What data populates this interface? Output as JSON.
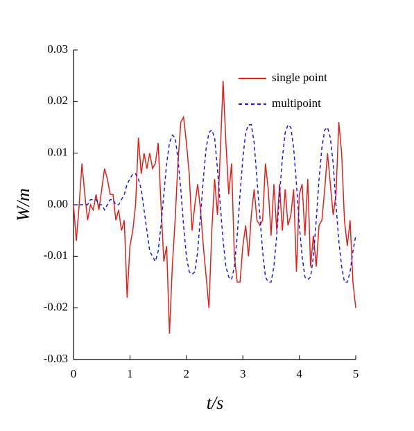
{
  "chart_data": {
    "type": "line",
    "x_label": "t/s",
    "y_label": "W/m",
    "x": [
      0,
      0.05,
      0.1,
      0.15,
      0.2,
      0.25,
      0.3,
      0.35,
      0.4,
      0.45,
      0.5,
      0.55,
      0.6,
      0.65,
      0.7,
      0.75,
      0.8,
      0.85,
      0.9,
      0.95,
      1,
      1.05,
      1.1,
      1.15,
      1.2,
      1.25,
      1.3,
      1.35,
      1.4,
      1.45,
      1.5,
      1.55,
      1.6,
      1.65,
      1.7,
      1.75,
      1.8,
      1.85,
      1.9,
      1.95,
      2,
      2.05,
      2.1,
      2.15,
      2.2,
      2.25,
      2.3,
      2.35,
      2.4,
      2.45,
      2.5,
      2.55,
      2.6,
      2.65,
      2.7,
      2.75,
      2.8,
      2.85,
      2.9,
      2.95,
      3,
      3.05,
      3.1,
      3.15,
      3.2,
      3.25,
      3.3,
      3.35,
      3.4,
      3.45,
      3.5,
      3.55,
      3.6,
      3.65,
      3.7,
      3.75,
      3.8,
      3.85,
      3.9,
      3.95,
      4,
      4.05,
      4.1,
      4.15,
      4.2,
      4.25,
      4.3,
      4.35,
      4.4,
      4.45,
      4.5,
      4.55,
      4.6,
      4.65,
      4.7,
      4.75,
      4.8,
      4.85,
      4.9,
      4.95,
      5
    ],
    "series": [
      {
        "name": "single point",
        "color": "#e0201b",
        "dash": false,
        "values": [
          0,
          -0.007,
          0,
          0.008,
          0.002,
          -0.003,
          0,
          -0.001,
          0.002,
          -0.001,
          0.003,
          0.007,
          0.005,
          0.002,
          0.002,
          -0.003,
          -0.001,
          -0.005,
          -0.003,
          -0.018,
          -0.008,
          -0.005,
          0,
          0.013,
          0.006,
          0.01,
          0.007,
          0.01,
          0.007,
          0.008,
          0.012,
          0,
          -0.011,
          -0.008,
          -0.025,
          -0.012,
          -0.003,
          0.008,
          0.016,
          0.017,
          0.012,
          0.006,
          -0.005,
          0,
          0.004,
          -0.001,
          -0.008,
          -0.014,
          -0.02,
          -0.005,
          0.005,
          -0.002,
          0.01,
          0.024,
          0.012,
          0.002,
          0.008,
          -0.01,
          -0.015,
          -0.015,
          -0.008,
          -0.004,
          -0.01,
          -0.002,
          0.003,
          -0.003,
          -0.004,
          -0.003,
          0.008,
          0.003,
          -0.006,
          0.004,
          -0.005,
          0.004,
          -0.005,
          0.003,
          -0.004,
          -0.002,
          0.003,
          -0.013,
          0.002,
          0.004,
          -0.006,
          0.005,
          -0.012,
          -0.006,
          -0.012,
          -0.004,
          -0.003,
          0.003,
          0.01,
          0.004,
          -0.002,
          0.002,
          0.016,
          0.01,
          -0.003,
          -0.008,
          -0.003,
          -0.015,
          -0.02
        ]
      },
      {
        "name": "multipoint",
        "color": "#1a1adf",
        "dash": true,
        "values": [
          0,
          0,
          0,
          0,
          0,
          0,
          0.001,
          0.001,
          0.001,
          0,
          0,
          -0.001,
          0,
          0.001,
          0.001,
          0,
          0,
          0.001,
          0.002,
          0.004,
          0.005,
          0.006,
          0.006,
          0.005,
          0.003,
          -0.001,
          -0.005,
          -0.009,
          -0.01,
          -0.011,
          -0.009,
          -0.004,
          0.002,
          0.008,
          0.012,
          0.0135,
          0.013,
          0.009,
          0.003,
          -0.004,
          -0.01,
          -0.013,
          -0.0135,
          -0.013,
          -0.009,
          -0.002,
          0.005,
          0.011,
          0.014,
          0.0145,
          0.013,
          0.007,
          0,
          -0.007,
          -0.012,
          -0.014,
          -0.0145,
          -0.012,
          -0.006,
          0.002,
          0.009,
          0.014,
          0.0155,
          0.0155,
          0.012,
          0.005,
          -0.002,
          -0.009,
          -0.014,
          -0.015,
          -0.015,
          -0.012,
          -0.006,
          0.002,
          0.009,
          0.014,
          0.0155,
          0.015,
          0.011,
          0.004,
          -0.004,
          -0.01,
          -0.014,
          -0.0145,
          -0.014,
          -0.01,
          -0.003,
          0.005,
          0.011,
          0.0145,
          0.015,
          0.013,
          0.008,
          0,
          -0.007,
          -0.012,
          -0.015,
          -0.015,
          -0.013,
          -0.009,
          -0.006
        ]
      }
    ],
    "xlim": [
      0,
      5
    ],
    "xticks": [
      0,
      1,
      2,
      3,
      4,
      5
    ],
    "ylim": [
      -0.03,
      0.03
    ],
    "yticks": [
      -0.03,
      -0.02,
      -0.01,
      {
        "value": 0,
        "label": "0.00"
      },
      0.01,
      0.02,
      0.03
    ],
    "legend": "upper right"
  }
}
